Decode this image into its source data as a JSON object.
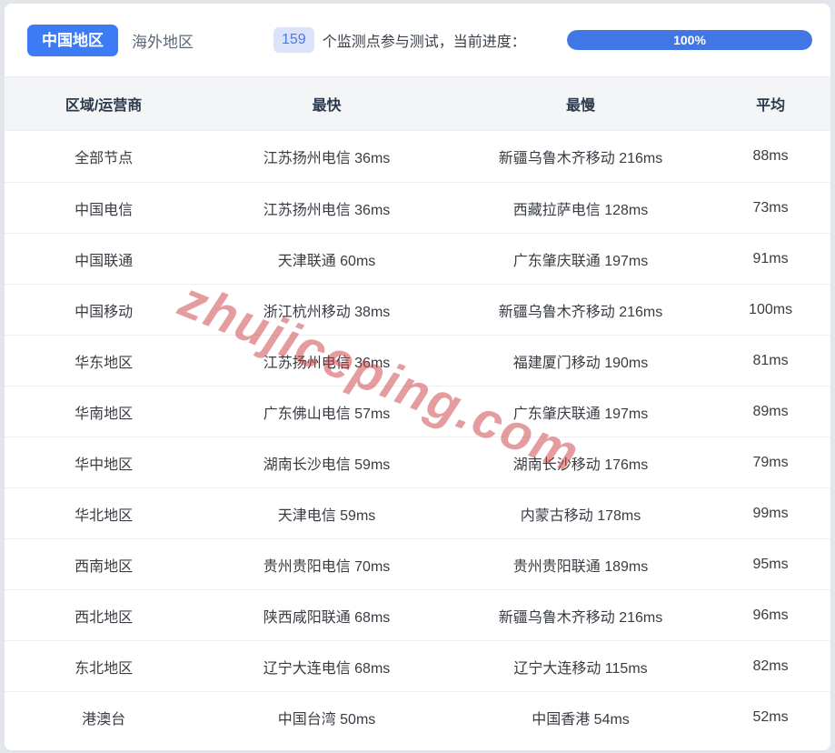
{
  "tabs": {
    "china": "中国地区",
    "overseas": "海外地区"
  },
  "monitor": {
    "count": "159",
    "label": "个监测点参与测试，当前进度：",
    "progress_percent": 100,
    "progress_label": "100%"
  },
  "colors": {
    "tab_active_bg": "#3d7bf5",
    "progress_bar": "#4077e5",
    "badge_bg": "#dbe3fb",
    "badge_text": "#4a78e8",
    "header_bg": "#f4f5f7",
    "watermark_red": "#c9393e"
  },
  "watermark": "zhujiceping.com",
  "table": {
    "headers": [
      "区域/运营商",
      "最快",
      "最慢",
      "平均"
    ],
    "rows": [
      {
        "region": "全部节点",
        "fastest": "江苏扬州电信 36ms",
        "slowest": "新疆乌鲁木齐移动 216ms",
        "avg": "88ms"
      },
      {
        "region": "中国电信",
        "fastest": "江苏扬州电信 36ms",
        "slowest": "西藏拉萨电信 128ms",
        "avg": "73ms"
      },
      {
        "region": "中国联通",
        "fastest": "天津联通 60ms",
        "slowest": "广东肇庆联通 197ms",
        "avg": "91ms"
      },
      {
        "region": "中国移动",
        "fastest": "浙江杭州移动 38ms",
        "slowest": "新疆乌鲁木齐移动 216ms",
        "avg": "100ms"
      },
      {
        "region": "华东地区",
        "fastest": "江苏扬州电信 36ms",
        "slowest": "福建厦门移动 190ms",
        "avg": "81ms"
      },
      {
        "region": "华南地区",
        "fastest": "广东佛山电信 57ms",
        "slowest": "广东肇庆联通 197ms",
        "avg": "89ms"
      },
      {
        "region": "华中地区",
        "fastest": "湖南长沙电信 59ms",
        "slowest": "湖南长沙移动 176ms",
        "avg": "79ms"
      },
      {
        "region": "华北地区",
        "fastest": "天津电信 59ms",
        "slowest": "内蒙古移动 178ms",
        "avg": "99ms"
      },
      {
        "region": "西南地区",
        "fastest": "贵州贵阳电信 70ms",
        "slowest": "贵州贵阳联通 189ms",
        "avg": "95ms"
      },
      {
        "region": "西北地区",
        "fastest": "陕西咸阳联通 68ms",
        "slowest": "新疆乌鲁木齐移动 216ms",
        "avg": "96ms"
      },
      {
        "region": "东北地区",
        "fastest": "辽宁大连电信 68ms",
        "slowest": "辽宁大连移动 115ms",
        "avg": "82ms"
      },
      {
        "region": "港澳台",
        "fastest": "中国台湾 50ms",
        "slowest": "中国香港 54ms",
        "avg": "52ms"
      }
    ]
  }
}
